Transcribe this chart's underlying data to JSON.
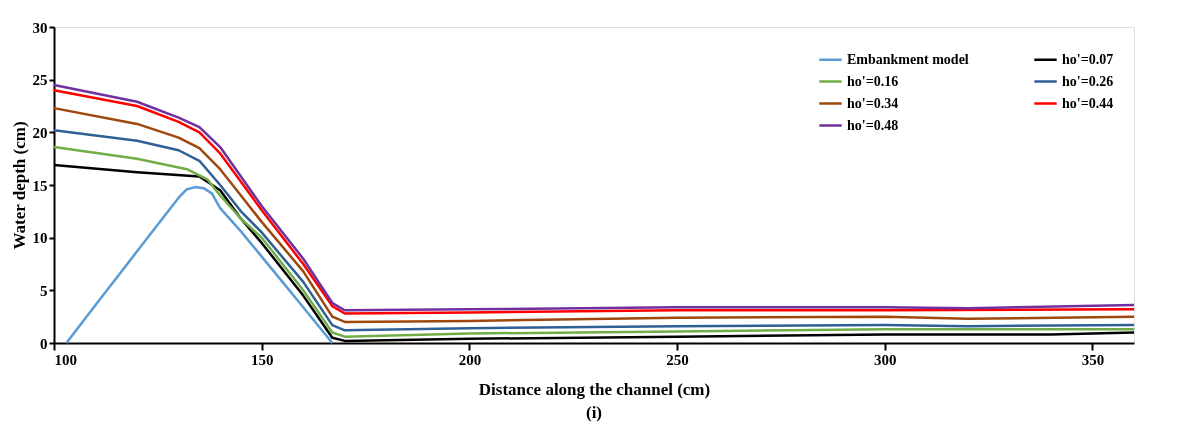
{
  "chart_data": {
    "type": "line",
    "xlabel": "Distance along the channel (cm)",
    "ylabel": "Water depth (cm)",
    "xlim": [
      100,
      360
    ],
    "xticks": [
      100,
      150,
      200,
      250,
      300,
      350
    ],
    "ylim": [
      0,
      30
    ],
    "yticks": [
      0,
      5,
      10,
      15,
      20,
      25,
      30
    ],
    "grid": false,
    "legend": "top right",
    "marker": "none",
    "line_style": "solid",
    "annotations": [
      "(i)"
    ],
    "series": [
      {
        "name": "Embankment model",
        "color": "#5b9bd5",
        "x": [
          103,
          110,
          120,
          130,
          132,
          134,
          136,
          138,
          140,
          145,
          150,
          155,
          160,
          167
        ],
        "values": [
          0,
          3.6,
          8.7,
          13.8,
          14.6,
          14.8,
          14.7,
          14.2,
          12.8,
          10.6,
          8.2,
          5.8,
          3.4,
          0
        ]
      },
      {
        "name": "ho'=0.07",
        "color": "#000000",
        "x": [
          100,
          120,
          135,
          140,
          145,
          150,
          160,
          167,
          170,
          200,
          250,
          300,
          340,
          360
        ],
        "values": [
          16.9,
          16.2,
          15.8,
          14.5,
          11.8,
          9.5,
          4.5,
          0.5,
          0.2,
          0.4,
          0.6,
          0.8,
          0.8,
          1.0
        ]
      },
      {
        "name": "ho'=0.16",
        "color": "#70ad47",
        "x": [
          100,
          120,
          132,
          137,
          140,
          145,
          150,
          160,
          167,
          170,
          200,
          250,
          300,
          360
        ],
        "values": [
          18.6,
          17.5,
          16.5,
          15.5,
          14.0,
          11.8,
          10.0,
          5.0,
          1.0,
          0.6,
          0.9,
          1.1,
          1.3,
          1.3
        ]
      },
      {
        "name": "ho'=0.26",
        "color": "#2e6096",
        "x": [
          100,
          120,
          130,
          135,
          140,
          145,
          150,
          160,
          167,
          170,
          200,
          250,
          300,
          320,
          360
        ],
        "values": [
          20.2,
          19.2,
          18.3,
          17.3,
          15.0,
          12.5,
          10.5,
          5.8,
          1.7,
          1.2,
          1.4,
          1.6,
          1.7,
          1.6,
          1.7
        ]
      },
      {
        "name": "ho'=0.34",
        "color": "#9e480e",
        "x": [
          100,
          120,
          130,
          135,
          140,
          145,
          150,
          160,
          167,
          170,
          200,
          250,
          300,
          320,
          360
        ],
        "values": [
          22.3,
          20.8,
          19.5,
          18.5,
          16.5,
          14.0,
          11.5,
          6.8,
          2.5,
          2.0,
          2.1,
          2.4,
          2.5,
          2.3,
          2.5
        ]
      },
      {
        "name": "ho'=0.44",
        "color": "#ff0000",
        "x": [
          100,
          120,
          130,
          135,
          140,
          145,
          150,
          160,
          167,
          170,
          200,
          250,
          300,
          360
        ],
        "values": [
          24.0,
          22.5,
          21.0,
          20.0,
          18.0,
          15.3,
          12.6,
          7.5,
          3.5,
          2.8,
          2.9,
          3.1,
          3.1,
          3.2
        ]
      },
      {
        "name": "ho'=0.48",
        "color": "#7030a0",
        "x": [
          100,
          120,
          130,
          135,
          140,
          145,
          150,
          160,
          167,
          170,
          200,
          250,
          300,
          320,
          360
        ],
        "values": [
          24.5,
          22.9,
          21.4,
          20.5,
          18.6,
          15.8,
          13.0,
          8.0,
          3.8,
          3.1,
          3.2,
          3.4,
          3.4,
          3.3,
          3.6
        ]
      }
    ]
  }
}
